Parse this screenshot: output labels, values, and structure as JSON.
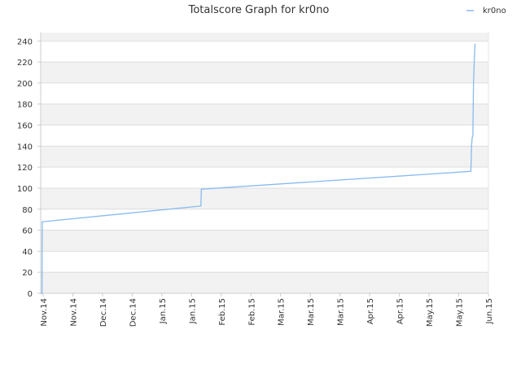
{
  "chart_data": {
    "type": "line",
    "title": "Totalscore Graph for kr0no",
    "xlabel": "",
    "ylabel": "",
    "ylim": [
      0,
      248
    ],
    "y_ticks": [
      0,
      20,
      40,
      60,
      80,
      100,
      120,
      140,
      160,
      180,
      200,
      220,
      240
    ],
    "x_ticks": [
      "Nov.14",
      "Nov.14",
      "Dec.14",
      "Dec.14",
      "Jan.15",
      "Jan.15",
      "Feb.15",
      "Feb.15",
      "Mar.15",
      "Mar.15",
      "Mar.15",
      "Apr.15",
      "Apr.15",
      "May.15",
      "May.15",
      "Jun.15"
    ],
    "x_range_days": [
      0,
      204
    ],
    "grid": true,
    "legend_position": "top-right",
    "series": [
      {
        "name": "kr0no",
        "color": "#88bbee",
        "x_days": [
          0,
          0.6,
          0.7,
          73,
          73.2,
          196,
          196.3,
          196.6,
          196.9,
          197.2,
          197.6,
          197.9
        ],
        "values": [
          0,
          0,
          68,
          83,
          99,
          116,
          140,
          148,
          150,
          200,
          225,
          237
        ]
      }
    ]
  }
}
